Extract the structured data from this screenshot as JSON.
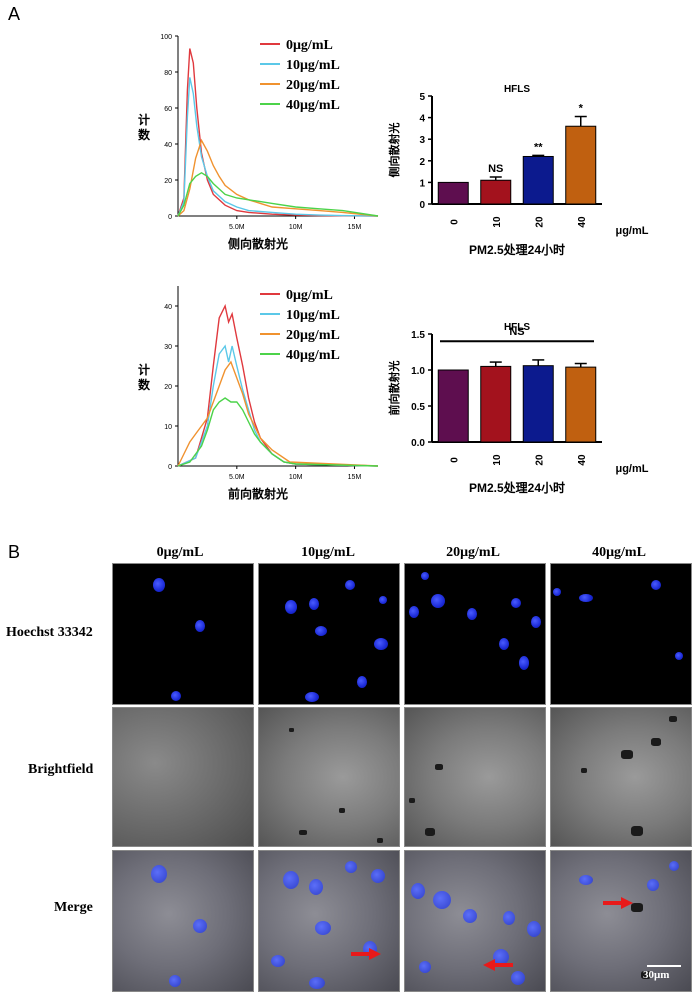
{
  "panel_a_label": "A",
  "panel_b_label": "B",
  "histograms": {
    "legend": [
      "0μg/mL",
      "10μg/mL",
      "20μg/mL",
      "40μg/mL"
    ],
    "colors": [
      "#e0393e",
      "#5bc8e8",
      "#f0922f",
      "#4cd34a"
    ],
    "ylabel": "计数",
    "top": {
      "xlabel": "侧向散射光",
      "yticks": [
        "0",
        "20",
        "40",
        "60",
        "80",
        "100"
      ],
      "xticks": [
        "5.0M",
        "10M",
        "15M"
      ]
    },
    "bottom": {
      "xlabel": "前向散射光",
      "yticks": [
        "0",
        "10",
        "20",
        "30",
        "40"
      ],
      "xticks": [
        "5.0M",
        "10M",
        "15M"
      ]
    }
  },
  "bars": {
    "colors": [
      "#5e0e4f",
      "#a3121d",
      "#0c1a8e",
      "#c06010"
    ],
    "unit": "μg/mL",
    "top": {
      "title": "HFLS",
      "ylabel": "侧向散射光",
      "xlabel": "PM2.5处理24小时",
      "yticks": [
        "0",
        "1",
        "2",
        "3",
        "4",
        "5"
      ],
      "categories": [
        "0",
        "10",
        "20",
        "40"
      ],
      "sig": [
        "",
        "NS",
        "**",
        "*"
      ]
    },
    "bottom": {
      "title": "HFLS",
      "ylabel": "前向散射光",
      "xlabel": "PM2.5处理24小时",
      "yticks": [
        "0.0",
        "0.5",
        "1.0",
        "1.5"
      ],
      "categories": [
        "0",
        "10",
        "20",
        "40"
      ],
      "sig_all": "NS"
    }
  },
  "chart_data": [
    {
      "type": "line",
      "title": "",
      "xlabel": "侧向散射光",
      "ylabel": "计数",
      "ylim": [
        0,
        100
      ],
      "xlim": [
        0,
        17
      ],
      "series": [
        {
          "name": "0μg/mL",
          "x": [
            0,
            0.5,
            0.8,
            1.0,
            1.3,
            1.6,
            2.0,
            2.5,
            3.0,
            4.0,
            5.0,
            6.0,
            8.0,
            10,
            12,
            14,
            17
          ],
          "values": [
            0,
            10,
            70,
            93,
            85,
            60,
            35,
            20,
            12,
            6,
            3,
            2,
            1,
            0.5,
            0.3,
            0.1,
            0
          ]
        },
        {
          "name": "10μg/mL",
          "x": [
            0,
            0.5,
            0.8,
            1.0,
            1.3,
            1.6,
            2.0,
            2.5,
            3.0,
            4.0,
            5.0,
            6.0,
            8.0,
            10,
            12,
            14,
            17
          ],
          "values": [
            0,
            8,
            55,
            77,
            68,
            50,
            33,
            22,
            14,
            8,
            5,
            3,
            2,
            1,
            0.5,
            0.2,
            0
          ]
        },
        {
          "name": "20μg/mL",
          "x": [
            0,
            0.5,
            1.0,
            1.5,
            2.0,
            2.5,
            3.0,
            3.5,
            4.0,
            5.0,
            6.0,
            7.0,
            8.0,
            10,
            12,
            14,
            17
          ],
          "values": [
            0,
            3,
            15,
            32,
            42,
            36,
            28,
            22,
            17,
            12,
            9,
            7,
            5,
            4,
            3,
            2,
            0
          ]
        },
        {
          "name": "40μg/mL",
          "x": [
            0,
            0.5,
            1.0,
            1.5,
            2.0,
            2.5,
            3.0,
            3.5,
            4.0,
            5.0,
            6.0,
            7.0,
            8.0,
            10,
            12,
            14,
            17
          ],
          "values": [
            0,
            6,
            18,
            22,
            24,
            22,
            18,
            15,
            12,
            10,
            9,
            8,
            7,
            5,
            4,
            3,
            0
          ]
        }
      ]
    },
    {
      "type": "line",
      "title": "",
      "xlabel": "前向散射光",
      "ylabel": "计数",
      "ylim": [
        0,
        45
      ],
      "xlim": [
        0,
        17
      ],
      "series": [
        {
          "name": "0μg/mL",
          "x": [
            0,
            1.5,
            2.5,
            3.0,
            3.5,
            4.0,
            4.3,
            4.6,
            5.0,
            5.5,
            6.0,
            6.5,
            7.0,
            8.0,
            9.0,
            10,
            17
          ],
          "values": [
            0,
            2,
            12,
            25,
            37,
            40,
            36,
            38,
            32,
            25,
            17,
            11,
            7,
            3,
            1,
            0.5,
            0
          ]
        },
        {
          "name": "10μg/mL",
          "x": [
            0,
            1.5,
            2.5,
            3.0,
            3.5,
            4.0,
            4.3,
            4.6,
            5.0,
            5.5,
            6.0,
            6.5,
            7.0,
            8.0,
            9.0,
            10,
            17
          ],
          "values": [
            0,
            2,
            10,
            20,
            28,
            30,
            26,
            30,
            25,
            19,
            14,
            9,
            6,
            3,
            1,
            0.5,
            0
          ]
        },
        {
          "name": "20μg/mL",
          "x": [
            0,
            0.5,
            1.0,
            1.5,
            2.0,
            2.5,
            3.0,
            3.5,
            4.0,
            4.5,
            5.0,
            5.5,
            6.0,
            7.0,
            8.0,
            9.5,
            17
          ],
          "values": [
            0,
            3,
            6,
            8,
            10,
            12,
            16,
            20,
            24,
            26,
            22,
            18,
            13,
            7,
            4,
            1,
            0
          ]
        },
        {
          "name": "40μg/mL",
          "x": [
            0,
            1.0,
            2.0,
            2.5,
            3.0,
            3.5,
            4.0,
            4.5,
            5.0,
            5.5,
            6.0,
            6.5,
            7.0,
            8.0,
            9.0,
            10,
            17
          ],
          "values": [
            0,
            1,
            5,
            9,
            14,
            16,
            17,
            16,
            16,
            14,
            11,
            8,
            6,
            3,
            1,
            0.5,
            0
          ]
        }
      ]
    },
    {
      "type": "bar",
      "title": "HFLS",
      "xlabel": "PM2.5处理24小时",
      "ylabel": "侧向散射光",
      "categories": [
        "0",
        "10",
        "20",
        "40"
      ],
      "values": [
        1.0,
        1.1,
        2.2,
        3.6
      ],
      "errors": [
        0,
        0.15,
        0.05,
        0.45
      ],
      "ylim": [
        0,
        5
      ]
    },
    {
      "type": "bar",
      "title": "HFLS",
      "xlabel": "PM2.5处理24小时",
      "ylabel": "前向散射光",
      "categories": [
        "0",
        "10",
        "20",
        "40"
      ],
      "values": [
        1.0,
        1.05,
        1.06,
        1.04
      ],
      "errors": [
        0,
        0.06,
        0.08,
        0.05
      ],
      "ylim": [
        0,
        1.5
      ]
    }
  ],
  "micro": {
    "columns": [
      "0μg/mL",
      "10μg/mL",
      "20μg/mL",
      "40μg/mL"
    ],
    "rows": [
      "Hoechst 33342",
      "Brightfield",
      "Merge"
    ],
    "scale_bar": "30μm"
  }
}
